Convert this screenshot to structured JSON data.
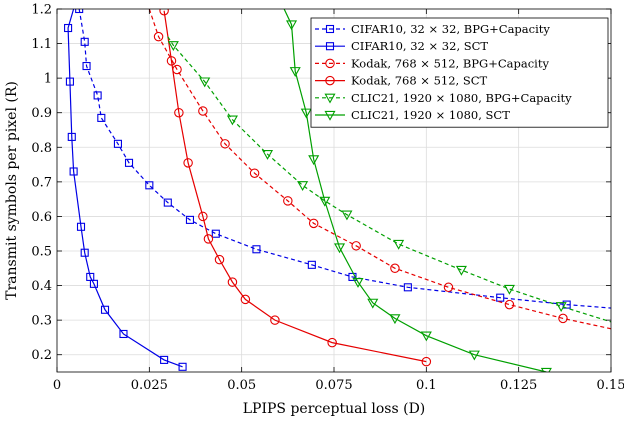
{
  "chart_data": {
    "type": "line",
    "xlabel": "LPIPS perceptual loss (D)",
    "ylabel": "Transmit symbols per pixel (R)",
    "xlim": [
      0,
      0.15
    ],
    "ylim": [
      0.15,
      1.2
    ],
    "x_ticks": [
      0,
      0.025,
      0.05,
      0.075,
      0.1,
      0.125,
      0.15
    ],
    "x_tick_labels": [
      "0",
      "0.025",
      "0.05",
      "0.075",
      "0.1",
      "0.125",
      "0.15"
    ],
    "y_ticks": [
      0.2,
      0.3,
      0.4,
      0.5,
      0.6,
      0.7,
      0.8,
      0.9,
      1,
      1.1,
      1.2
    ],
    "y_tick_labels": [
      "0.2",
      "0.3",
      "0.4",
      "0.5",
      "0.6",
      "0.7",
      "0.8",
      "0.9",
      "1",
      "1.1",
      "1.2"
    ],
    "grid": true,
    "legend_position": "top-right",
    "series": [
      {
        "name": "CIFAR10, 32 × 32, BPG+Capacity",
        "color": "#0000e6",
        "dash": "dashed",
        "marker": "square",
        "points": [
          [
            0.006,
            1.2
          ],
          [
            0.0075,
            1.105
          ],
          [
            0.008,
            1.035
          ],
          [
            0.011,
            0.95
          ],
          [
            0.012,
            0.885
          ],
          [
            0.0165,
            0.81
          ],
          [
            0.0195,
            0.755
          ],
          [
            0.025,
            0.69
          ],
          [
            0.03,
            0.64
          ],
          [
            0.036,
            0.59
          ],
          [
            0.043,
            0.55
          ],
          [
            0.054,
            0.505
          ],
          [
            0.069,
            0.46
          ],
          [
            0.08,
            0.425
          ],
          [
            0.095,
            0.395
          ],
          [
            0.12,
            0.365
          ],
          [
            0.138,
            0.345
          ],
          [
            0.15,
            0.335
          ]
        ],
        "marked": [
          [
            0.006,
            1.2
          ],
          [
            0.0075,
            1.105
          ],
          [
            0.008,
            1.035
          ],
          [
            0.011,
            0.95
          ],
          [
            0.012,
            0.885
          ],
          [
            0.0165,
            0.81
          ],
          [
            0.0195,
            0.755
          ],
          [
            0.025,
            0.69
          ],
          [
            0.03,
            0.64
          ],
          [
            0.036,
            0.59
          ],
          [
            0.043,
            0.55
          ],
          [
            0.054,
            0.505
          ],
          [
            0.069,
            0.46
          ],
          [
            0.08,
            0.425
          ],
          [
            0.095,
            0.395
          ],
          [
            0.12,
            0.365
          ],
          [
            0.138,
            0.345
          ]
        ]
      },
      {
        "name": "CIFAR10, 32 × 32, SCT",
        "color": "#0000e6",
        "dash": "solid",
        "marker": "square",
        "points": [
          [
            0.0045,
            1.2
          ],
          [
            0.003,
            1.145
          ],
          [
            0.0035,
            0.99
          ],
          [
            0.004,
            0.83
          ],
          [
            0.0045,
            0.73
          ],
          [
            0.0065,
            0.57
          ],
          [
            0.0075,
            0.495
          ],
          [
            0.009,
            0.425
          ],
          [
            0.01,
            0.405
          ],
          [
            0.013,
            0.33
          ],
          [
            0.018,
            0.26
          ],
          [
            0.029,
            0.185
          ],
          [
            0.034,
            0.165
          ]
        ],
        "marked": [
          [
            0.003,
            1.145
          ],
          [
            0.0035,
            0.99
          ],
          [
            0.004,
            0.83
          ],
          [
            0.0045,
            0.73
          ],
          [
            0.0065,
            0.57
          ],
          [
            0.0075,
            0.495
          ],
          [
            0.009,
            0.425
          ],
          [
            0.01,
            0.405
          ],
          [
            0.013,
            0.33
          ],
          [
            0.018,
            0.26
          ],
          [
            0.029,
            0.185
          ],
          [
            0.034,
            0.165
          ]
        ]
      },
      {
        "name": "Kodak, 768 × 512, BPG+Capacity",
        "color": "#e60000",
        "dash": "dashed",
        "marker": "circle",
        "points": [
          [
            0.025,
            1.2
          ],
          [
            0.0275,
            1.12
          ],
          [
            0.0325,
            1.025
          ],
          [
            0.0395,
            0.905
          ],
          [
            0.0455,
            0.81
          ],
          [
            0.0535,
            0.725
          ],
          [
            0.0625,
            0.645
          ],
          [
            0.0695,
            0.58
          ],
          [
            0.081,
            0.515
          ],
          [
            0.0915,
            0.45
          ],
          [
            0.106,
            0.395
          ],
          [
            0.1225,
            0.345
          ],
          [
            0.137,
            0.305
          ],
          [
            0.15,
            0.275
          ]
        ],
        "marked": [
          [
            0.0275,
            1.12
          ],
          [
            0.0325,
            1.025
          ],
          [
            0.0395,
            0.905
          ],
          [
            0.0455,
            0.81
          ],
          [
            0.0535,
            0.725
          ],
          [
            0.0625,
            0.645
          ],
          [
            0.0695,
            0.58
          ],
          [
            0.081,
            0.515
          ],
          [
            0.0915,
            0.45
          ],
          [
            0.106,
            0.395
          ],
          [
            0.1225,
            0.345
          ],
          [
            0.137,
            0.305
          ]
        ]
      },
      {
        "name": "Kodak, 768 × 512, SCT",
        "color": "#e60000",
        "dash": "solid",
        "marker": "circle",
        "points": [
          [
            0.029,
            1.195
          ],
          [
            0.031,
            1.05
          ],
          [
            0.033,
            0.9
          ],
          [
            0.0355,
            0.755
          ],
          [
            0.0395,
            0.6
          ],
          [
            0.041,
            0.535
          ],
          [
            0.044,
            0.475
          ],
          [
            0.0475,
            0.41
          ],
          [
            0.051,
            0.36
          ],
          [
            0.059,
            0.3
          ],
          [
            0.0745,
            0.235
          ],
          [
            0.1,
            0.18
          ]
        ],
        "marked": [
          [
            0.029,
            1.195
          ],
          [
            0.031,
            1.05
          ],
          [
            0.033,
            0.9
          ],
          [
            0.0355,
            0.755
          ],
          [
            0.0395,
            0.6
          ],
          [
            0.041,
            0.535
          ],
          [
            0.044,
            0.475
          ],
          [
            0.0475,
            0.41
          ],
          [
            0.051,
            0.36
          ],
          [
            0.059,
            0.3
          ],
          [
            0.0745,
            0.235
          ],
          [
            0.1,
            0.18
          ]
        ]
      },
      {
        "name": "CLIC21, 1920 × 1080, BPG+Capacity",
        "color": "#00a000",
        "dash": "dashed",
        "marker": "triangle",
        "points": [
          [
            0.03,
            1.12
          ],
          [
            0.0315,
            1.095
          ],
          [
            0.04,
            0.99
          ],
          [
            0.0475,
            0.88
          ],
          [
            0.057,
            0.78
          ],
          [
            0.0665,
            0.69
          ],
          [
            0.0725,
            0.645
          ],
          [
            0.0785,
            0.605
          ],
          [
            0.0925,
            0.52
          ],
          [
            0.1095,
            0.445
          ],
          [
            0.1225,
            0.39
          ],
          [
            0.1365,
            0.34
          ],
          [
            0.15,
            0.295
          ]
        ],
        "marked": [
          [
            0.0315,
            1.095
          ],
          [
            0.04,
            0.99
          ],
          [
            0.0475,
            0.88
          ],
          [
            0.057,
            0.78
          ],
          [
            0.0665,
            0.69
          ],
          [
            0.0785,
            0.605
          ],
          [
            0.0925,
            0.52
          ],
          [
            0.1095,
            0.445
          ],
          [
            0.1225,
            0.39
          ],
          [
            0.1365,
            0.34
          ]
        ]
      },
      {
        "name": "CLIC21, 1920 × 1080, SCT",
        "color": "#00a000",
        "dash": "solid",
        "marker": "triangle",
        "points": [
          [
            0.0615,
            1.2
          ],
          [
            0.0635,
            1.155
          ],
          [
            0.0645,
            1.02
          ],
          [
            0.0675,
            0.9
          ],
          [
            0.0695,
            0.765
          ],
          [
            0.0725,
            0.645
          ],
          [
            0.0765,
            0.51
          ],
          [
            0.0815,
            0.41
          ],
          [
            0.0855,
            0.35
          ],
          [
            0.0915,
            0.305
          ],
          [
            0.1,
            0.255
          ],
          [
            0.113,
            0.2
          ],
          [
            0.1325,
            0.15
          ]
        ],
        "marked": [
          [
            0.0635,
            1.155
          ],
          [
            0.0645,
            1.02
          ],
          [
            0.0675,
            0.9
          ],
          [
            0.0695,
            0.765
          ],
          [
            0.0725,
            0.645
          ],
          [
            0.0765,
            0.51
          ],
          [
            0.0815,
            0.41
          ],
          [
            0.0855,
            0.35
          ],
          [
            0.0915,
            0.305
          ],
          [
            0.1,
            0.255
          ],
          [
            0.113,
            0.2
          ],
          [
            0.1325,
            0.15
          ]
        ]
      }
    ]
  }
}
